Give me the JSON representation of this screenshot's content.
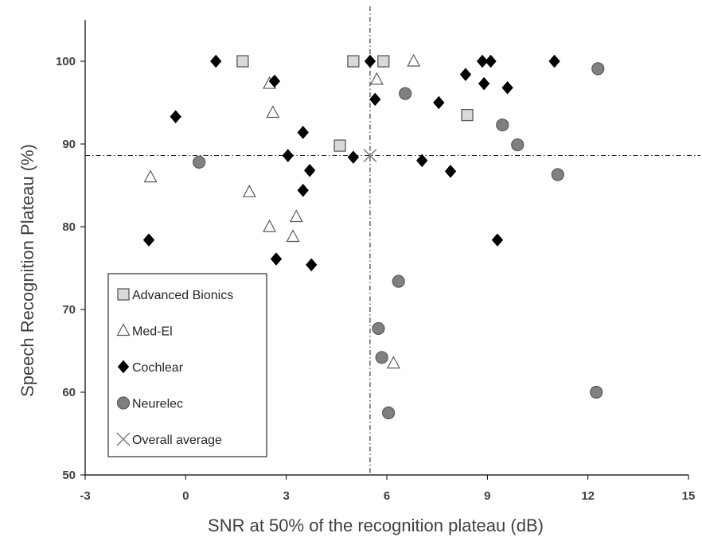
{
  "chart_data": {
    "type": "scatter",
    "title": "",
    "xlabel": "SNR at 50% of the recognition plateau (dB)",
    "ylabel": "Speech Recognition Plateau (%)",
    "xlim": [
      -3,
      15
    ],
    "ylim": [
      50,
      105
    ],
    "xticks": [
      "-3",
      "0",
      "3",
      "6",
      "9",
      "12",
      "15"
    ],
    "yticks": [
      "50",
      "60",
      "70",
      "80",
      "90",
      "100"
    ],
    "grid": false,
    "legend_position": "bottom-left",
    "reference_lines": {
      "x": 5.5,
      "y": 88.6
    },
    "series": [
      {
        "name": "Advanced Bionics",
        "marker": "square",
        "fill": "#d9d9d9",
        "stroke": "#595959",
        "points": [
          [
            1.7,
            100
          ],
          [
            5.0,
            100
          ],
          [
            5.9,
            100
          ],
          [
            8.4,
            93.5
          ],
          [
            4.6,
            89.8
          ]
        ]
      },
      {
        "name": "Med-El",
        "marker": "triangle",
        "fill": "#ffffff",
        "stroke": "#595959",
        "points": [
          [
            2.5,
            97.3
          ],
          [
            2.6,
            93.8
          ],
          [
            5.7,
            97.8
          ],
          [
            6.8,
            100
          ],
          [
            -1.05,
            86.0
          ],
          [
            1.9,
            84.2
          ],
          [
            2.5,
            80.0
          ],
          [
            3.3,
            81.2
          ],
          [
            3.2,
            78.8
          ],
          [
            6.2,
            63.5
          ]
        ]
      },
      {
        "name": "Cochlear",
        "marker": "diamond",
        "fill": "#000000",
        "stroke": "#000000",
        "points": [
          [
            0.9,
            100
          ],
          [
            -0.3,
            93.3
          ],
          [
            2.65,
            97.6
          ],
          [
            5.5,
            100
          ],
          [
            5.65,
            95.4
          ],
          [
            3.5,
            91.4
          ],
          [
            3.05,
            88.6
          ],
          [
            5.0,
            88.4
          ],
          [
            3.7,
            86.8
          ],
          [
            3.5,
            84.4
          ],
          [
            -1.1,
            78.4
          ],
          [
            2.7,
            76.1
          ],
          [
            3.75,
            75.4
          ],
          [
            7.05,
            88.0
          ],
          [
            7.55,
            95.0
          ],
          [
            7.9,
            86.7
          ],
          [
            8.35,
            98.4
          ],
          [
            8.85,
            100
          ],
          [
            9.1,
            100
          ],
          [
            8.9,
            97.3
          ],
          [
            9.6,
            96.8
          ],
          [
            11.0,
            100
          ],
          [
            9.3,
            78.4
          ]
        ]
      },
      {
        "name": "Neurelec",
        "marker": "circle",
        "fill": "#808080",
        "stroke": "#595959",
        "points": [
          [
            0.4,
            87.8
          ],
          [
            6.55,
            96.1
          ],
          [
            9.45,
            92.3
          ],
          [
            9.9,
            89.9
          ],
          [
            11.1,
            86.3
          ],
          [
            12.3,
            99.1
          ],
          [
            6.35,
            73.4
          ],
          [
            5.75,
            67.7
          ],
          [
            5.85,
            64.2
          ],
          [
            6.05,
            57.5
          ],
          [
            12.25,
            60.0
          ]
        ]
      },
      {
        "name": "Overall average",
        "marker": "cross",
        "fill": "none",
        "stroke": "#808080",
        "points": [
          [
            5.5,
            88.6
          ]
        ]
      }
    ]
  }
}
